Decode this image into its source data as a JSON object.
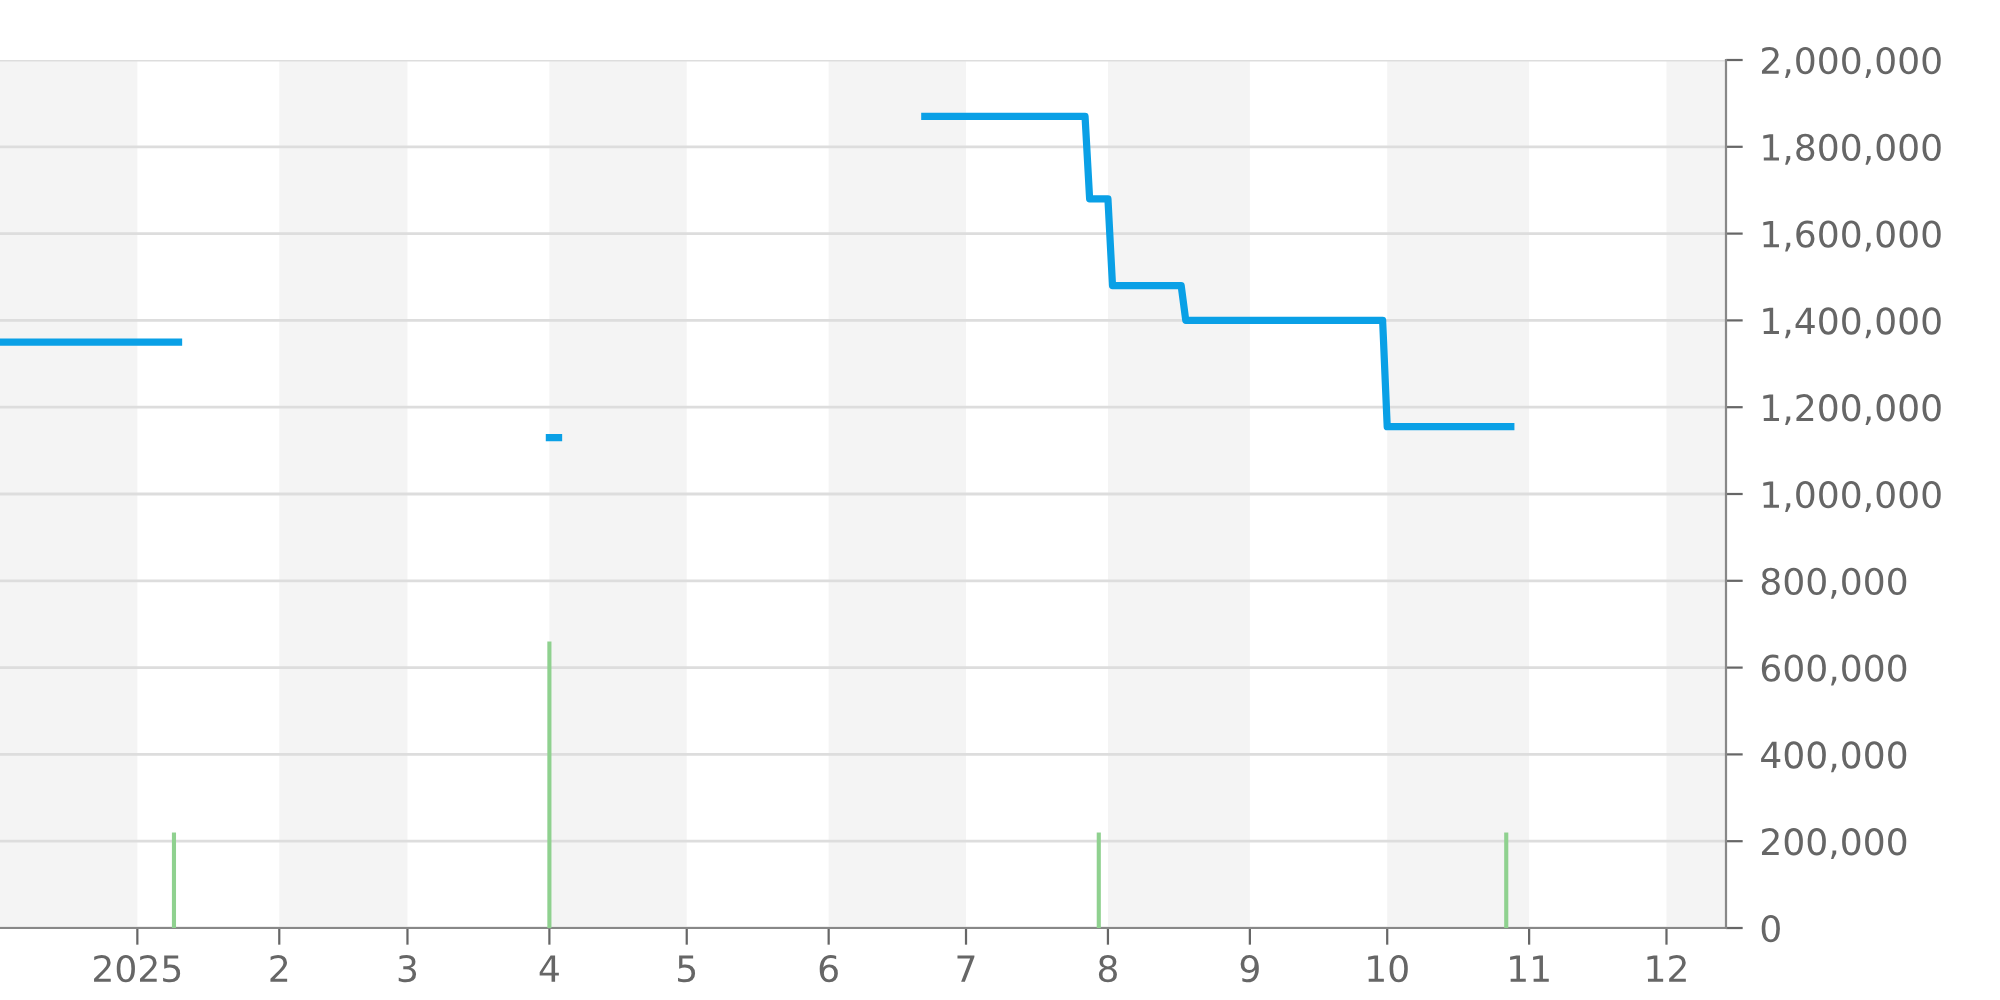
{
  "chart_data": {
    "type": "line",
    "series": [
      {
        "color": "#0aa0e6",
        "x": [
          "2024-12-02",
          "2025-01-10",
          "2025-01-11",
          "2025-04-01",
          "2025-04-03",
          "2025-04-04",
          "2025-06-22",
          "2025-07-27",
          "2025-07-28",
          "2025-08-01",
          "2025-08-02",
          "2025-08-17",
          "2025-08-18",
          "2025-09-30",
          "2025-10-01",
          "2025-10-28"
        ],
        "values": [
          1350000,
          1350000,
          null,
          1130000,
          1130000,
          null,
          1870000,
          1870000,
          1680000,
          1680000,
          1480000,
          1480000,
          1400000,
          1400000,
          1155000,
          1155000
        ]
      },
      {
        "type": "bar",
        "color": "#8fd18f",
        "x": [
          "2025-01-09",
          "2025-04-01",
          "2025-07-30",
          "2025-10-27"
        ],
        "values": [
          220000,
          660000,
          220000,
          220000
        ]
      }
    ],
    "xlim": [
      "2024-12-02",
      "2025-12-14"
    ],
    "xticks": [
      {
        "value": "2025-01-01",
        "label": "2025"
      },
      {
        "value": "2025-02-01",
        "label": "2"
      },
      {
        "value": "2025-03-01",
        "label": "3"
      },
      {
        "value": "2025-04-01",
        "label": "4"
      },
      {
        "value": "2025-05-01",
        "label": "5"
      },
      {
        "value": "2025-06-01",
        "label": "6"
      },
      {
        "value": "2025-07-01",
        "label": "7"
      },
      {
        "value": "2025-08-01",
        "label": "8"
      },
      {
        "value": "2025-09-01",
        "label": "9"
      },
      {
        "value": "2025-10-01",
        "label": "10"
      },
      {
        "value": "2025-11-01",
        "label": "11"
      },
      {
        "value": "2025-12-01",
        "label": "12"
      }
    ],
    "ylim": [
      0,
      2000000
    ],
    "yticks": [
      {
        "value": 0,
        "label": "0"
      },
      {
        "value": 200000,
        "label": "200,000"
      },
      {
        "value": 400000,
        "label": "400,000"
      },
      {
        "value": 600000,
        "label": "600,000"
      },
      {
        "value": 800000,
        "label": "800,000"
      },
      {
        "value": 1000000,
        "label": "1,000,000"
      },
      {
        "value": 1200000,
        "label": "1,200,000"
      },
      {
        "value": 1400000,
        "label": "1,400,000"
      },
      {
        "value": 1600000,
        "label": "1,600,000"
      },
      {
        "value": 1800000,
        "label": "1,800,000"
      },
      {
        "value": 2000000,
        "label": "2,000,000"
      }
    ],
    "grid": "y",
    "bands": [
      {
        "axis": "x",
        "from": "2024-12-02",
        "to": "2025-01-01",
        "color": "#f4f4f4"
      },
      {
        "axis": "x",
        "from": "2025-02-01",
        "to": "2025-03-01",
        "color": "#f4f4f4"
      },
      {
        "axis": "x",
        "from": "2025-04-01",
        "to": "2025-05-01",
        "color": "#f4f4f4"
      },
      {
        "axis": "x",
        "from": "2025-06-01",
        "to": "2025-07-01",
        "color": "#f4f4f4"
      },
      {
        "axis": "x",
        "from": "2025-08-01",
        "to": "2025-09-01",
        "color": "#f4f4f4"
      },
      {
        "axis": "x",
        "from": "2025-10-01",
        "to": "2025-11-01",
        "color": "#f4f4f4"
      },
      {
        "axis": "x",
        "from": "2025-12-01",
        "to": "2025-12-14",
        "color": "#f4f4f4"
      }
    ]
  }
}
